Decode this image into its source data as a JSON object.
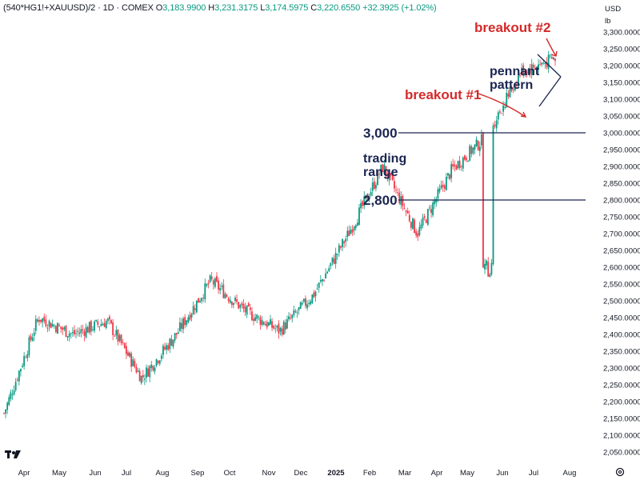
{
  "header": {
    "symbol": "(540*HG1!+XAUUSD)/2 · 1D · COMEX",
    "o_label": "O",
    "o_value": "3,183.9900",
    "h_label": "H",
    "h_value": "3,231.3175",
    "l_label": "L",
    "l_value": "3,174.5975",
    "c_label": "C",
    "c_value": "3,220.6550",
    "change": "+32.3925 (+1.02%)"
  },
  "axis": {
    "currency": "USD",
    "unit": "lb",
    "y_ticks": [
      "3,300.0000",
      "3,250.0000",
      "3,200.0000",
      "3,150.0000",
      "3,100.0000",
      "3,050.0000",
      "3,000.0000",
      "2,950.0000",
      "2,900.0000",
      "2,850.0000",
      "2,800.0000",
      "2,750.0000",
      "2,700.0000",
      "2,650.0000",
      "2,600.0000",
      "2,550.0000",
      "2,500.0000",
      "2,450.0000",
      "2,400.0000",
      "2,350.0000",
      "2,300.0000",
      "2,250.0000",
      "2,200.0000",
      "2,150.0000",
      "2,100.0000",
      "2,050.0000"
    ],
    "x_ticks": [
      "Apr",
      "May",
      "Jun",
      "Jul",
      "Aug",
      "Sep",
      "Oct",
      "Nov",
      "Dec",
      "2025",
      "Feb",
      "Mar",
      "Apr",
      "May",
      "Jun",
      "Jul",
      "Aug"
    ]
  },
  "annotations": {
    "breakout2": "breakout #2",
    "breakout1": "breakout #1",
    "pennant_line1": "pennant",
    "pennant_line2": "pattern",
    "level_3000": "3,000",
    "level_2800": "2,800",
    "trading_line1": "trading",
    "trading_line2": "range"
  },
  "icons": {
    "logo": "tradingview-logo-icon",
    "settings": "settings-gear-icon"
  },
  "colors": {
    "up": "#089981",
    "down": "#f23645",
    "annotation_red": "#d42a2a",
    "annotation_navy": "#1a2550"
  },
  "chart_data": {
    "type": "candlestick",
    "title": "(540*HG1!+XAUUSD)/2 · 1D · COMEX",
    "ylabel": "USD/lb",
    "ylim": [
      2020,
      3340
    ],
    "x_period": [
      "2024-04-01",
      "2025-08-01"
    ],
    "close_path": [
      {
        "month": "Apr 2024",
        "close": 2165
      },
      {
        "month": "May 2024",
        "close": 2450
      },
      {
        "month": "Jun 2024",
        "close": 2400
      },
      {
        "month": "Jul 2024",
        "close": 2440
      },
      {
        "month": "Aug 2024",
        "close": 2270
      },
      {
        "month": "Sep 2024",
        "close": 2400
      },
      {
        "month": "Oct 2024",
        "close": 2560
      },
      {
        "month": "Nov 2024",
        "close": 2470
      },
      {
        "month": "Dec 2024",
        "close": 2410
      },
      {
        "month": "Jan 2025",
        "close": 2520
      },
      {
        "month": "Feb 2025",
        "close": 2700
      },
      {
        "month": "Mar 2025",
        "close": 2900
      },
      {
        "month": "Apr 2025",
        "close": 2700
      },
      {
        "month": "May 2025",
        "close": 2890
      },
      {
        "month": "Jun 2025",
        "close": 2990
      },
      {
        "month": "Jul 2025",
        "close": 3180
      },
      {
        "last": "C",
        "close": 3220.655
      }
    ],
    "horizontal_levels": [
      3000,
      2800
    ]
  }
}
